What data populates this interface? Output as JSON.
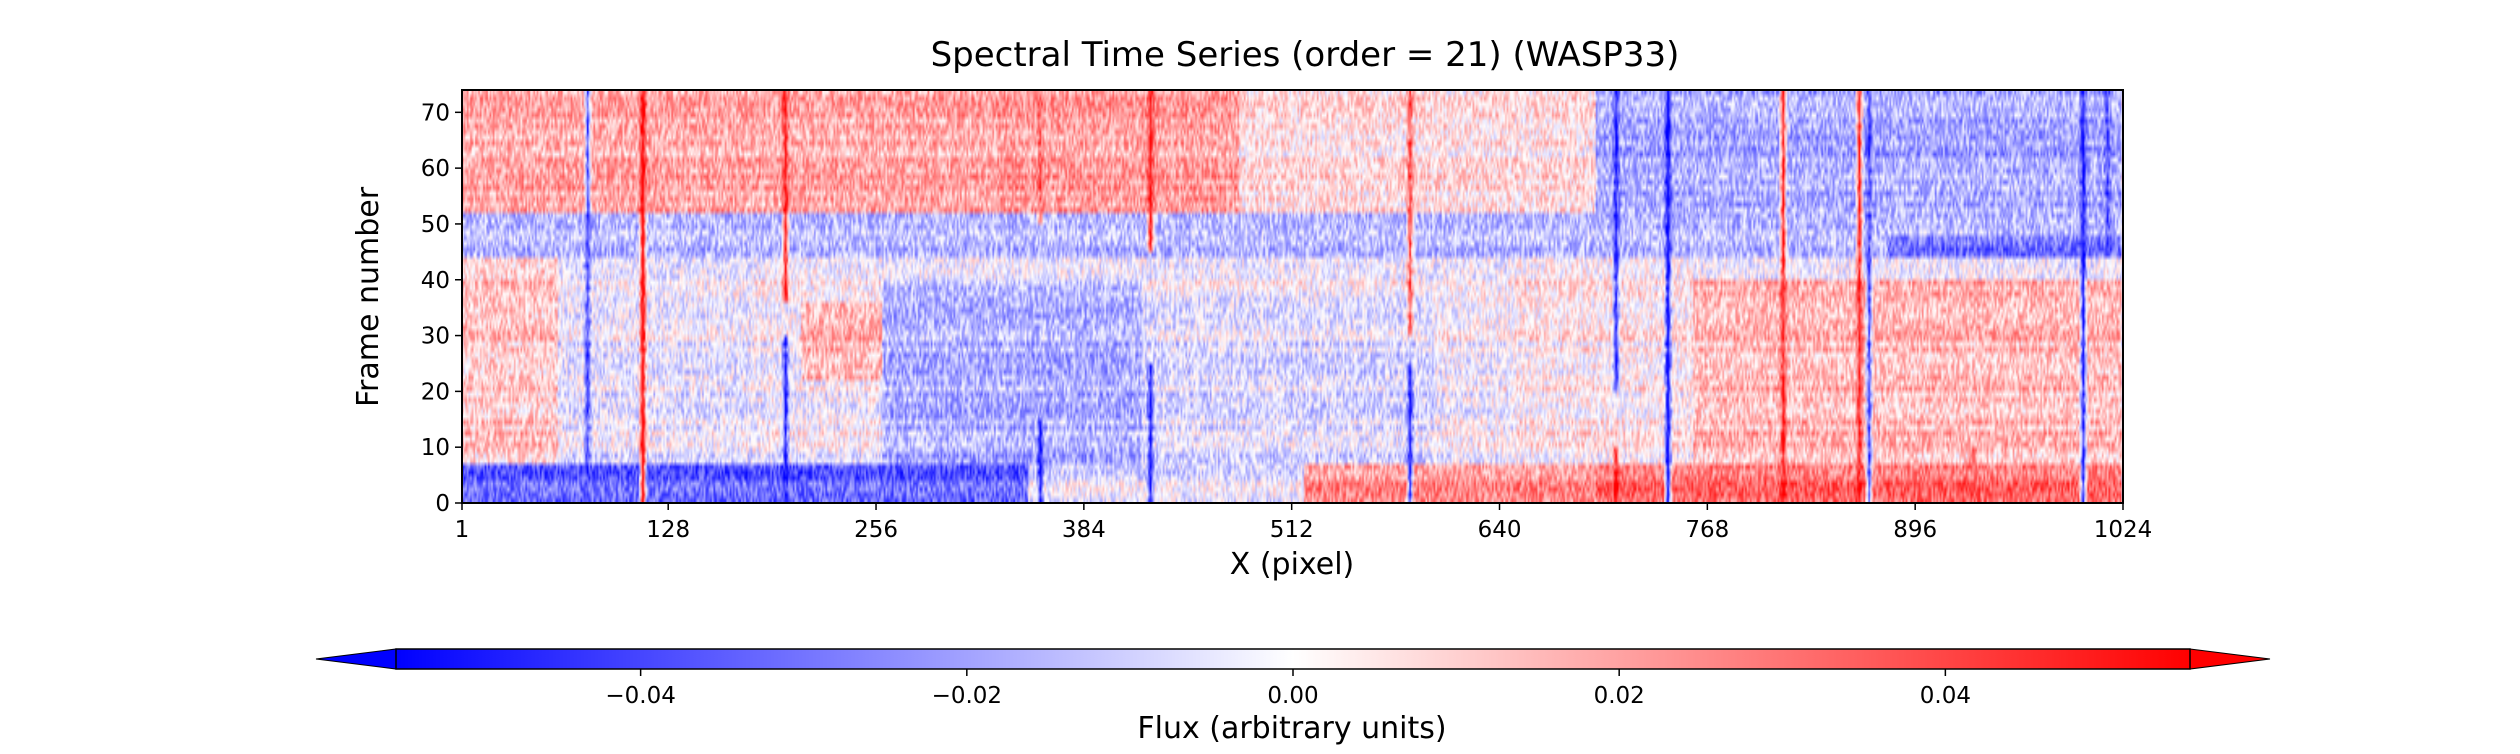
{
  "chart_data": {
    "type": "heatmap",
    "title": "Spectral Time Series (order = 21) (WASP33)",
    "xlabel": "X (pixel)",
    "ylabel": "Frame number",
    "xlim": [
      1,
      1024
    ],
    "ylim": [
      0,
      74
    ],
    "x_ticks": [
      1,
      128,
      256,
      384,
      512,
      640,
      768,
      896,
      1024
    ],
    "y_ticks": [
      0,
      10,
      20,
      30,
      40,
      50,
      60,
      70
    ],
    "n_columns": 1024,
    "n_frames": 74,
    "colormap": {
      "name": "bwr",
      "low": "#0000ff",
      "mid": "#ffffff",
      "high": "#ff0000"
    },
    "grid": false,
    "colorbar": {
      "orientation": "horizontal",
      "placement": "bottom",
      "label": "Flux (arbitrary units)",
      "vmin": -0.055,
      "vmax": 0.055,
      "extend": "both",
      "ticks": [
        -0.04,
        -0.02,
        0.0,
        0.02,
        0.04
      ],
      "tick_labels": [
        "−0.04",
        "−0.02",
        "0.00",
        "0.02",
        "0.04"
      ]
    },
    "regions": [
      {
        "x": [
          1,
          330
        ],
        "y": [
          52,
          74
        ],
        "value": 0.018
      },
      {
        "x": [
          330,
          480
        ],
        "y": [
          48,
          74
        ],
        "value": 0.02
      },
      {
        "x": [
          480,
          700
        ],
        "y": [
          45,
          74
        ],
        "value": 0.006
      },
      {
        "x": [
          700,
          1024
        ],
        "y": [
          44,
          74
        ],
        "value": -0.018
      },
      {
        "x": [
          1,
          60
        ],
        "y": [
          7,
          45
        ],
        "value": 0.012
      },
      {
        "x": [
          60,
          180
        ],
        "y": [
          7,
          45
        ],
        "value": -0.003
      },
      {
        "x": [
          210,
          270
        ],
        "y": [
          22,
          36
        ],
        "value": 0.016
      },
      {
        "x": [
          260,
          420
        ],
        "y": [
          7,
          40
        ],
        "value": -0.016
      },
      {
        "x": [
          420,
          600
        ],
        "y": [
          7,
          38
        ],
        "value": -0.006
      },
      {
        "x": [
          650,
          760
        ],
        "y": [
          7,
          45
        ],
        "value": 0.004
      },
      {
        "x": [
          760,
          1024
        ],
        "y": [
          7,
          40
        ],
        "value": 0.015
      },
      {
        "x": [
          1,
          350
        ],
        "y": [
          0,
          7
        ],
        "value": -0.035
      },
      {
        "x": [
          350,
          520
        ],
        "y": [
          0,
          7
        ],
        "value": -0.006
      },
      {
        "x": [
          520,
          700
        ],
        "y": [
          0,
          7
        ],
        "value": 0.022
      },
      {
        "x": [
          700,
          1024
        ],
        "y": [
          0,
          7
        ],
        "value": 0.03
      },
      {
        "x": [
          1,
          1024
        ],
        "y": [
          44,
          52
        ],
        "value": -0.015
      },
      {
        "x": [
          880,
          1024
        ],
        "y": [
          44,
          48
        ],
        "value": -0.03
      }
    ],
    "lines": [
      {
        "x": 112,
        "value": 0.06
      },
      {
        "x": 200,
        "value": 0.05,
        "y": [
          36,
          74
        ]
      },
      {
        "x": 200,
        "value": -0.05,
        "y": [
          0,
          30
        ]
      },
      {
        "x": 78,
        "value": -0.04
      },
      {
        "x": 425,
        "value": 0.05,
        "y": [
          45,
          74
        ]
      },
      {
        "x": 425,
        "value": -0.05,
        "y": [
          0,
          25
        ]
      },
      {
        "x": 357,
        "value": 0.035,
        "y": [
          50,
          74
        ]
      },
      {
        "x": 357,
        "value": -0.05,
        "y": [
          0,
          15
        ]
      },
      {
        "x": 585,
        "value": 0.04,
        "y": [
          30,
          74
        ]
      },
      {
        "x": 585,
        "value": -0.05,
        "y": [
          0,
          25
        ]
      },
      {
        "x": 712,
        "value": -0.05,
        "y": [
          20,
          74
        ]
      },
      {
        "x": 712,
        "value": 0.05,
        "y": [
          0,
          10
        ]
      },
      {
        "x": 744,
        "value": -0.06
      },
      {
        "x": 815,
        "value": 0.05
      },
      {
        "x": 862,
        "value": 0.05
      },
      {
        "x": 868,
        "value": -0.04
      },
      {
        "x": 932,
        "value": 0.035,
        "y": [
          0,
          10
        ]
      },
      {
        "x": 1000,
        "value": -0.05
      },
      {
        "x": 1015,
        "value": -0.04,
        "y": [
          44,
          74
        ]
      }
    ]
  }
}
